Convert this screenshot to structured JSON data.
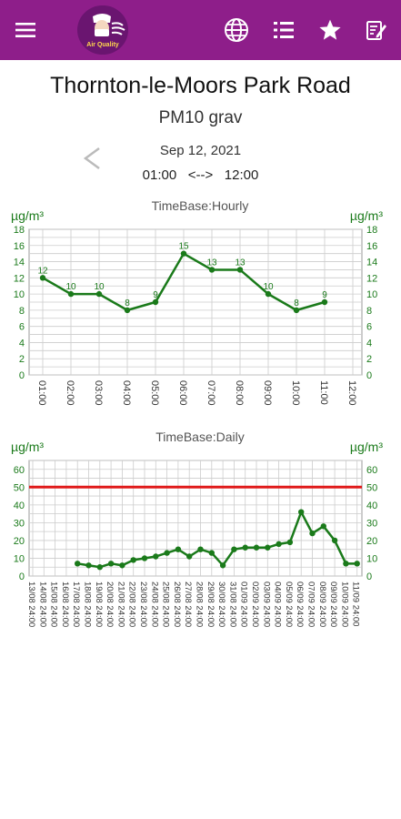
{
  "app": {
    "logo_caption": "Air Quality",
    "header_icons": [
      "menu-icon",
      "globe-icon",
      "list-icon",
      "star-icon",
      "edit-note-icon"
    ],
    "bar_color": "#8e1e8a"
  },
  "station": "Thornton-le-Moors Park Road",
  "pollutant": "PM10 grav",
  "date": "Sep 12, 2021",
  "time_from": "01:00",
  "arrow": "<-->",
  "time_to": "12:00",
  "colors": {
    "series": "#1a7a1a",
    "limit": "#e01a1a",
    "grid": "#cccccc"
  },
  "chart_data": [
    {
      "type": "line",
      "title": "TimeBase:Hourly",
      "ylabel_left": "µg/m³",
      "ylabel_right": "µg/m³",
      "ylim": [
        0,
        18
      ],
      "yticks": [
        0,
        2,
        4,
        6,
        8,
        10,
        12,
        14,
        16,
        18
      ],
      "categories": [
        "01:00",
        "02:00",
        "03:00",
        "04:00",
        "05:00",
        "06:00",
        "07:00",
        "08:00",
        "09:00",
        "10:00",
        "11:00",
        "12:00"
      ],
      "values": [
        12,
        10,
        10,
        8,
        9,
        15,
        13,
        13,
        10,
        8,
        9,
        null
      ],
      "data_labels": true,
      "grid": true
    },
    {
      "type": "line",
      "title": "TimeBase:Daily",
      "ylabel_left": "µg/m³",
      "ylabel_right": "µg/m³",
      "ylim": [
        0,
        65
      ],
      "yticks": [
        0,
        10,
        20,
        30,
        40,
        50,
        60
      ],
      "limit_line": 50,
      "categories": [
        "13/08 24:00",
        "14/08 24:00",
        "15/08 24:00",
        "16/08 24:00",
        "17/08 24:00",
        "18/08 24:00",
        "19/08 24:00",
        "20/08 24:00",
        "21/08 24:00",
        "22/08 24:00",
        "23/08 24:00",
        "24/08 24:00",
        "25/08 24:00",
        "26/08 24:00",
        "27/08 24:00",
        "28/08 24:00",
        "29/08 24:00",
        "30/08 24:00",
        "31/08 24:00",
        "01/09 24:00",
        "02/09 24:00",
        "03/09 24:00",
        "04/09 24:00",
        "05/09 24:00",
        "06/09 24:00",
        "07/09 24:00",
        "08/09 24:00",
        "09/09 24:00",
        "10/09 24:00",
        "11/09 24:00"
      ],
      "values": [
        null,
        null,
        null,
        null,
        7,
        6,
        5,
        7,
        6,
        9,
        10,
        11,
        13,
        15,
        11,
        15,
        13,
        6,
        15,
        16,
        16,
        16,
        18,
        19,
        36,
        24,
        28,
        20,
        7,
        7
      ],
      "data_labels": false,
      "grid": true
    }
  ]
}
